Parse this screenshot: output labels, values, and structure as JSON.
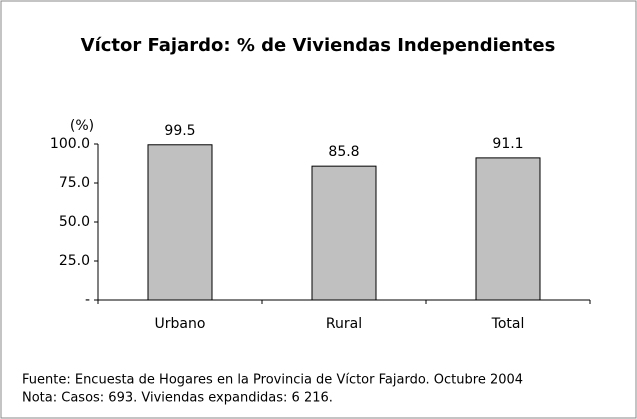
{
  "chart_data": {
    "type": "bar",
    "title": "Víctor Fajardo: % de Viviendas Independientes",
    "y_label": "(%)",
    "categories": [
      "Urbano",
      "Rural",
      "Total"
    ],
    "values": [
      99.5,
      85.8,
      91.1
    ],
    "color": "#c0c0c0",
    "ylim": [
      0,
      100
    ],
    "yticks": [
      {
        "value": 0,
        "label": "-"
      },
      {
        "value": 25,
        "label": "25.0"
      },
      {
        "value": 50,
        "label": "50.0"
      },
      {
        "value": 75,
        "label": "75.0"
      },
      {
        "value": 100,
        "label": "100.0"
      }
    ],
    "grid": false,
    "notes": [
      "Fuente: Encuesta de Hogares en la Provincia de Víctor Fajardo. Octubre 2004",
      "Nota: Casos: 693. Viviendas expandidas: 6 216."
    ]
  }
}
